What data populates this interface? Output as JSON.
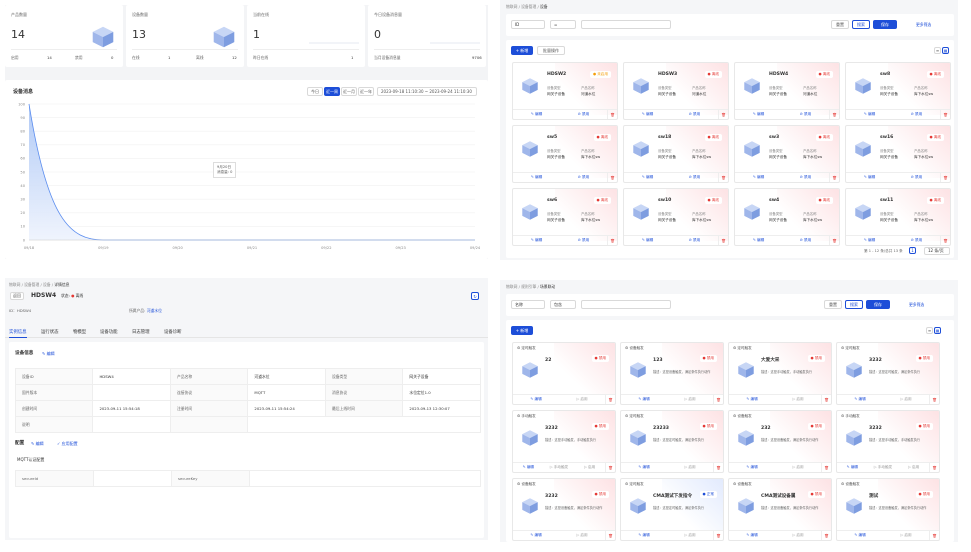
{
  "stats": [
    {
      "title": "产品数量",
      "value": "14",
      "l1": "启用",
      "v1": "14",
      "l2": "禁用",
      "v2": "0"
    },
    {
      "title": "设备数量",
      "value": "13",
      "l1": "在线",
      "v1": "1",
      "l2": "离线",
      "v2": "12"
    },
    {
      "title": "当前在线",
      "value": "1",
      "l1": "昨日在线",
      "v1": "1"
    },
    {
      "title": "今日设备消息量",
      "value": "0",
      "l1": "当月设备消息量",
      "v1": "9706"
    }
  ],
  "chart": {
    "title": "设备消息",
    "ranges": [
      "今日",
      "近一周",
      "近一月",
      "近一年"
    ],
    "active": "近一周",
    "date_from": "2023-09-18 11:10:30",
    "date_to": "2023-09-24 11:10:30",
    "tooltip_date": "9月20日",
    "tooltip_value": "消息量: 0",
    "yticks": [
      "0",
      "10",
      "20",
      "30",
      "40",
      "50",
      "60",
      "70",
      "80",
      "90",
      "100"
    ],
    "xticks": [
      "09/18",
      "09/19",
      "09/20",
      "09/21",
      "09/22",
      "09/23",
      "09/24"
    ]
  },
  "chart_data": {
    "type": "area",
    "x": [
      "09/18",
      "09/19",
      "09/20",
      "09/21",
      "09/22",
      "09/23",
      "09/24"
    ],
    "y": [
      100,
      0,
      0,
      0,
      0,
      0,
      0
    ],
    "ylim": [
      0,
      100
    ]
  },
  "devlist": {
    "breadcrumb": [
      "物联网",
      "设备管理",
      "设备"
    ],
    "filter1": "ID",
    "filter2": "=",
    "reset": "重置",
    "search": "搜索",
    "save": "保存",
    "more": "更多筛选",
    "add": "+ 新增",
    "batch": "批量操作",
    "cards": [
      {
        "name": "HDSW2",
        "status": "未启用",
        "sc": "pend",
        "k1": "设备类型",
        "v1": "网关子设备",
        "k2": "产品名称",
        "v2": "河道水位"
      },
      {
        "name": "HDSW3",
        "status": "离线",
        "sc": "off",
        "k1": "设备类型",
        "v1": "网关子设备",
        "k2": "产品名称",
        "v2": "河道水位"
      },
      {
        "name": "HDSW4",
        "status": "离线",
        "sc": "off",
        "k1": "设备类型",
        "v1": "网关子设备",
        "k2": "产品名称",
        "v2": "河道水位"
      },
      {
        "name": "sw8",
        "status": "离线",
        "sc": "off",
        "k1": "设备类型",
        "v1": "网关子设备",
        "k2": "产品名称",
        "v2": "库下水位sw"
      },
      {
        "name": "sw5",
        "status": "离线",
        "sc": "off",
        "k1": "设备类型",
        "v1": "网关子设备",
        "k2": "产品名称",
        "v2": "库下水位sw"
      },
      {
        "name": "sw18",
        "status": "离线",
        "sc": "off",
        "k1": "设备类型",
        "v1": "网关子设备",
        "k2": "产品名称",
        "v2": "库下水位sw"
      },
      {
        "name": "sw3",
        "status": "离线",
        "sc": "off",
        "k1": "设备类型",
        "v1": "网关子设备",
        "k2": "产品名称",
        "v2": "库下水位sw"
      },
      {
        "name": "sw16",
        "status": "离线",
        "sc": "off",
        "k1": "设备类型",
        "v1": "网关子设备",
        "k2": "产品名称",
        "v2": "库下水位sw"
      },
      {
        "name": "sw6",
        "status": "离线",
        "sc": "off",
        "k1": "设备类型",
        "v1": "网关子设备",
        "k2": "产品名称",
        "v2": "库下水位sw"
      },
      {
        "name": "sw10",
        "status": "离线",
        "sc": "off",
        "k1": "设备类型",
        "v1": "网关子设备",
        "k2": "产品名称",
        "v2": "库下水位sw"
      },
      {
        "name": "sw4",
        "status": "离线",
        "sc": "off",
        "k1": "设备类型",
        "v1": "网关子设备",
        "k2": "产品名称",
        "v2": "库下水位sw"
      },
      {
        "name": "sw11",
        "status": "离线",
        "sc": "off",
        "k1": "设备类型",
        "v1": "网关子设备",
        "k2": "产品名称",
        "v2": "库下水位sw"
      }
    ],
    "edit": "编辑",
    "disable": "禁用",
    "pagination": "第 1 - 12 条/总共 13 条",
    "pagesize": "12 条/页",
    "page": "1"
  },
  "detail": {
    "breadcrumb": [
      "物联网",
      "设备管理",
      "设备",
      "详情信息"
    ],
    "back": "返回",
    "name": "HDSW4",
    "state_label": "状态:",
    "state": "离线",
    "id_label": "ID：HDSW4",
    "product_label": "所属产品:",
    "product": "河道水位",
    "tabs": [
      "实例信息",
      "运行状态",
      "物模型",
      "设备功能",
      "日志管理",
      "设备诊断"
    ],
    "section": "设备信息",
    "edit": "编辑",
    "rows": [
      [
        "设备ID",
        "HDSW4",
        "产品名称",
        "河道水位",
        "设备类型",
        "网关子设备"
      ],
      [
        "固件版本",
        "",
        "连接协议",
        "MQTT",
        "消息协议",
        "水位定位1.0"
      ],
      [
        "创建时间",
        "2023-09-11 15:54:18",
        "注册时间",
        "2023-09-11 15:54:24",
        "最后上线时间",
        "2023-09-13 12:30:07"
      ],
      [
        "说明",
        "",
        "",
        "",
        "",
        ""
      ]
    ],
    "config_title": "配置",
    "config_edit": "编辑",
    "config_apply": "应用配置",
    "mqtt": "MQTT认证配置",
    "secureid": "secureId",
    "securekey": "secureKey"
  },
  "rules": {
    "breadcrumb": [
      "物联网",
      "规则引擎",
      "场景联动"
    ],
    "filter1": "名称",
    "filter2": "包含",
    "reset": "重置",
    "search": "搜索",
    "save": "保存",
    "more": "更多筛选",
    "add": "+ 新增",
    "cards": [
      {
        "trig": "定时触发",
        "name": "22",
        "status": "禁用",
        "desc": ""
      },
      {
        "trig": "设备触发",
        "name": "123",
        "status": "禁用",
        "desc": "描述：这是设备触发，满足条件执行动作"
      },
      {
        "trig": "定时触发",
        "name": "大爱大采",
        "status": "禁用",
        "desc": "描述：这是手动触发，手动触发执行"
      },
      {
        "trig": "定时触发",
        "name": "3232",
        "status": "禁用",
        "desc": "描述：这是定时触发，满足条件执行"
      },
      {
        "trig": "手动触发",
        "name": "3232",
        "status": "禁用",
        "desc": "描述：这是手动触发，手动触发执行"
      },
      {
        "trig": "定时触发",
        "name": "23233",
        "status": "禁用",
        "desc": "描述：这是定时触发，满足条件执行"
      },
      {
        "trig": "设备触发",
        "name": "232",
        "status": "禁用",
        "desc": "描述：这是设备触发，满足条件执行动作"
      },
      {
        "trig": "手动触发",
        "name": "3232",
        "status": "禁用",
        "desc": "描述：这是手动触发，手动触发执行"
      },
      {
        "trig": "设备触发",
        "name": "3232",
        "status": "禁用",
        "desc": "描述：这是设备触发，满足条件执行动作"
      },
      {
        "trig": "定时触发",
        "name": "CMA测试下发指令",
        "status": "正常",
        "desc": "描述：这是定时触发，满足条件执行"
      },
      {
        "trig": "设备触发",
        "name": "CMA测试设备属",
        "status": "禁用",
        "desc": "描述：这是设备触发，满足条件执行动作"
      },
      {
        "trig": "设备触发",
        "name": "测试",
        "status": "禁用",
        "desc": "描述：这是设备触发，满足条件执行动作"
      }
    ],
    "edit": "编辑",
    "run": "手动触发",
    "enable": "启用"
  }
}
